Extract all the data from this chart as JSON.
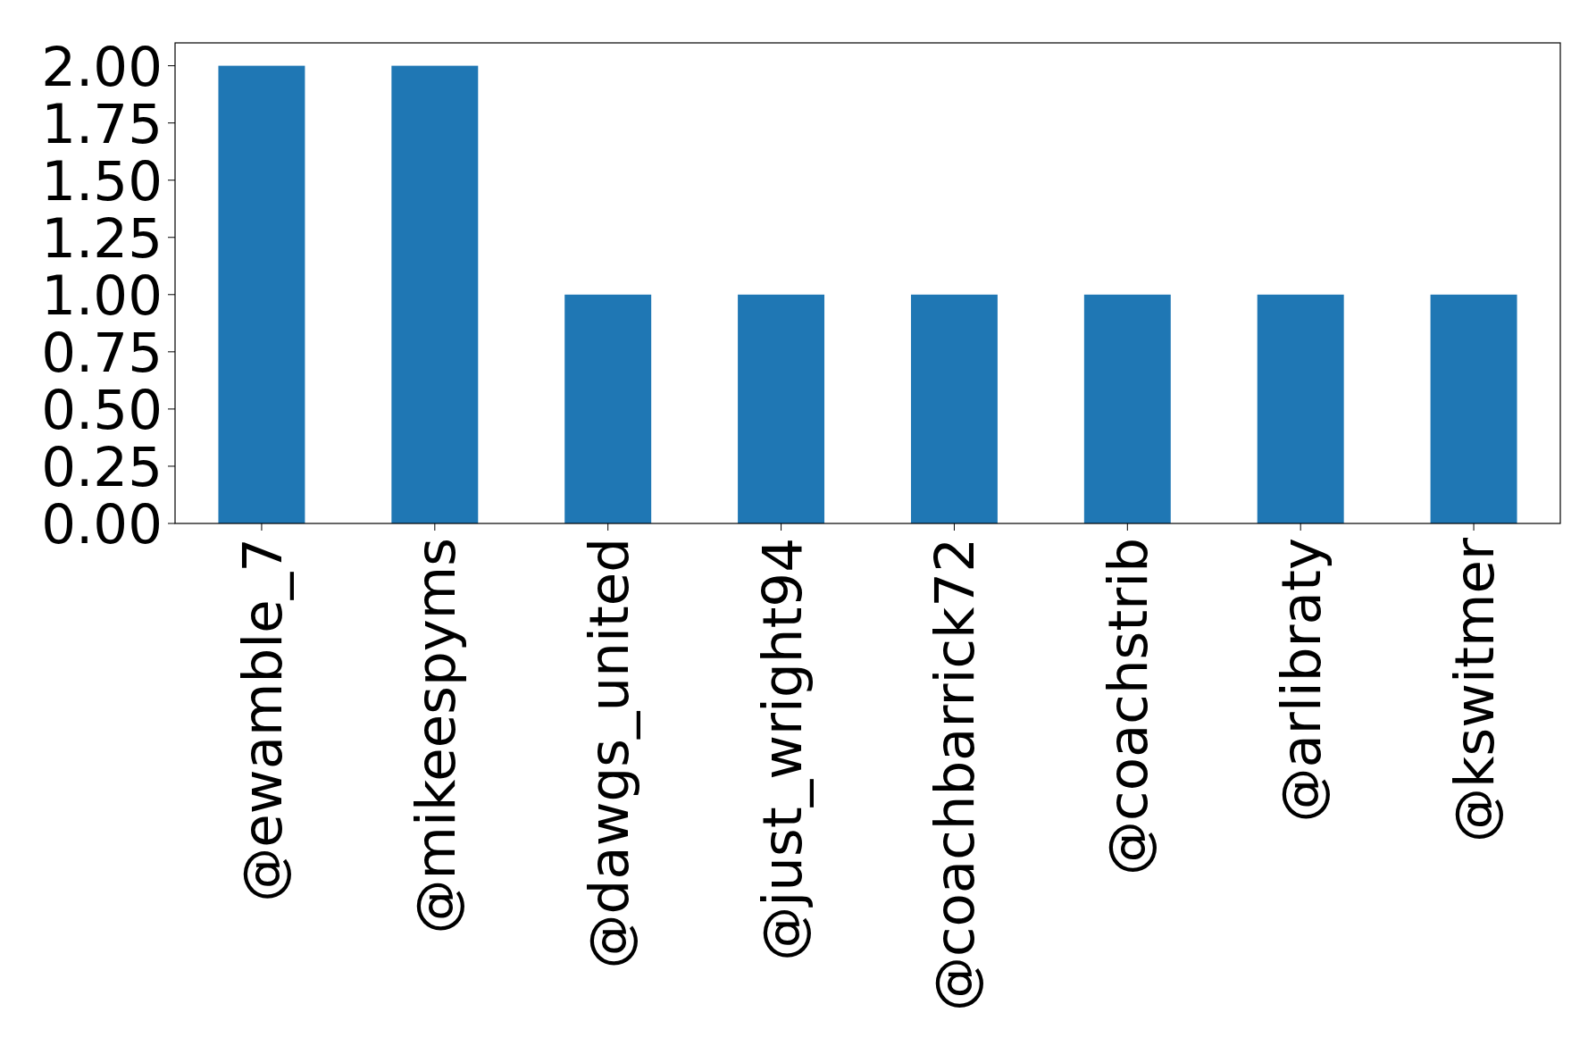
{
  "chart_data": {
    "type": "bar",
    "categories": [
      "@ewamble_7",
      "@mikeespyms",
      "@dawgs_united",
      "@just_wright94",
      "@coachbarrick72",
      "@coachstrib",
      "@arlibraty",
      "@kswitmer"
    ],
    "values": [
      2,
      2,
      1,
      1,
      1,
      1,
      1,
      1
    ],
    "color": "#1f77b4",
    "ylim": [
      0,
      2.1
    ],
    "yticks": [
      {
        "value": 0,
        "label": "0.00"
      },
      {
        "value": 0.25,
        "label": "0.25"
      },
      {
        "value": 0.5,
        "label": "0.50"
      },
      {
        "value": 0.75,
        "label": "0.75"
      },
      {
        "value": 1,
        "label": "1.00"
      },
      {
        "value": 1.25,
        "label": "1.25"
      },
      {
        "value": 1.5,
        "label": "1.50"
      },
      {
        "value": 1.75,
        "label": "1.75"
      },
      {
        "value": 2,
        "label": "2.00"
      }
    ],
    "grid": false
  }
}
